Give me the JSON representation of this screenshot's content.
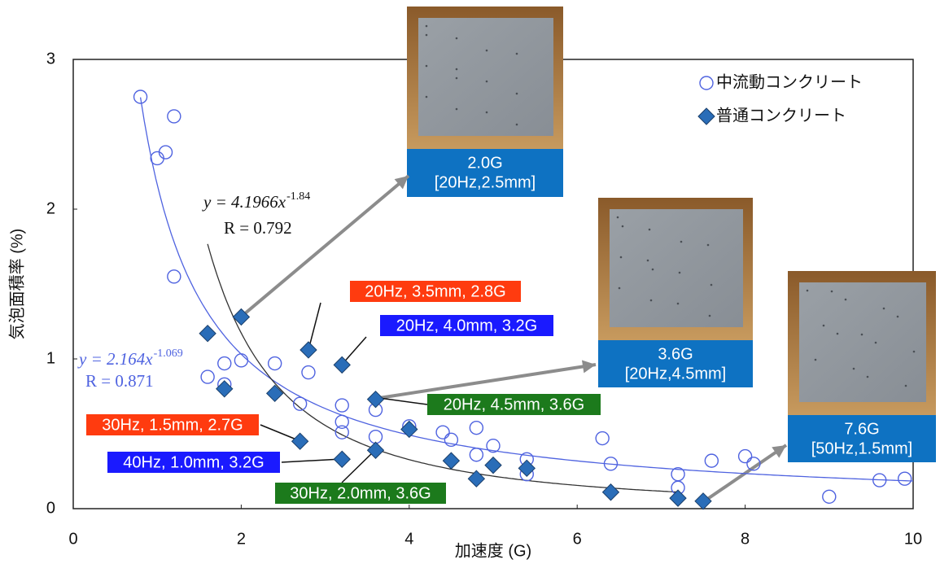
{
  "chart_data": {
    "type": "scatter",
    "x_label": "加速度 (G)",
    "y_label": "気泡面積率 (%)",
    "xlim": [
      0,
      10
    ],
    "ylim": [
      0,
      3
    ],
    "xticks": [
      0,
      2,
      4,
      6,
      8,
      10
    ],
    "yticks": [
      0,
      1,
      2,
      3
    ],
    "legend": "upper right",
    "series": [
      {
        "name": "中流動コンクリート",
        "color": "#4f63e0",
        "marker": "circle",
        "x": [
          0.8,
          1.0,
          1.1,
          1.2,
          1.2,
          1.6,
          1.8,
          1.8,
          2.0,
          2.4,
          2.7,
          2.8,
          3.2,
          3.2,
          3.2,
          3.6,
          3.6,
          4.0,
          4.4,
          4.5,
          4.8,
          4.8,
          5.0,
          5.4,
          5.4,
          6.3,
          6.4,
          7.2,
          7.2,
          7.6,
          8.0,
          8.1,
          9.0,
          9.6,
          9.9
        ],
        "values": [
          2.75,
          2.34,
          2.38,
          2.62,
          1.55,
          0.88,
          0.97,
          0.83,
          0.99,
          0.97,
          0.7,
          0.91,
          0.69,
          0.58,
          0.51,
          0.66,
          0.48,
          0.55,
          0.51,
          0.46,
          0.54,
          0.36,
          0.42,
          0.33,
          0.23,
          0.47,
          0.3,
          0.23,
          0.14,
          0.32,
          0.35,
          0.3,
          0.08,
          0.19,
          0.2
        ],
        "fit": {
          "a": 2.164,
          "b": -1.069,
          "x_range": [
            0.8,
            10
          ],
          "equation": "y = 2.164x",
          "exponent": "-1.069",
          "r_label": "R  = 0.871"
        }
      },
      {
        "name": "普通コンクリート",
        "color": "#2a6db8",
        "marker": "diamond",
        "x": [
          1.6,
          1.8,
          2.0,
          2.4,
          2.7,
          2.8,
          3.2,
          3.2,
          3.6,
          3.6,
          4.0,
          4.5,
          4.8,
          5.0,
          5.4,
          6.4,
          7.2,
          7.5
        ],
        "values": [
          1.17,
          0.8,
          1.28,
          0.77,
          0.45,
          1.06,
          0.96,
          0.33,
          0.73,
          0.39,
          0.53,
          0.32,
          0.2,
          0.29,
          0.27,
          0.11,
          0.07,
          0.05
        ],
        "fit": {
          "a": 4.1966,
          "b": -1.84,
          "x_range": [
            1.6,
            7.2
          ],
          "equation": "y = 4.1966x",
          "exponent": "-1.84",
          "r_label": "R  = 0.792"
        }
      }
    ],
    "annotations": [
      {
        "text": "20Hz, 3.5mm, 2.8G",
        "color": "#ff3b0f"
      },
      {
        "text": "20Hz, 4.0mm, 3.2G",
        "color": "#1a1aff"
      },
      {
        "text": "20Hz, 4.5mm, 3.6G",
        "color": "#1c7a1c"
      },
      {
        "text": "30Hz, 1.5mm, 2.7G",
        "color": "#ff3b0f"
      },
      {
        "text": "40Hz, 1.0mm, 3.2G",
        "color": "#1a1aff"
      },
      {
        "text": "30Hz, 2.0mm, 3.6G",
        "color": "#1c7a1c"
      }
    ],
    "photos": [
      {
        "caption": "2.0G",
        "subcaption": "[20Hz,2.5mm]"
      },
      {
        "caption": "3.6G",
        "subcaption": "[20Hz,4.5mm]"
      },
      {
        "caption": "7.6G",
        "subcaption": "[50Hz,1.5mm]"
      }
    ]
  }
}
